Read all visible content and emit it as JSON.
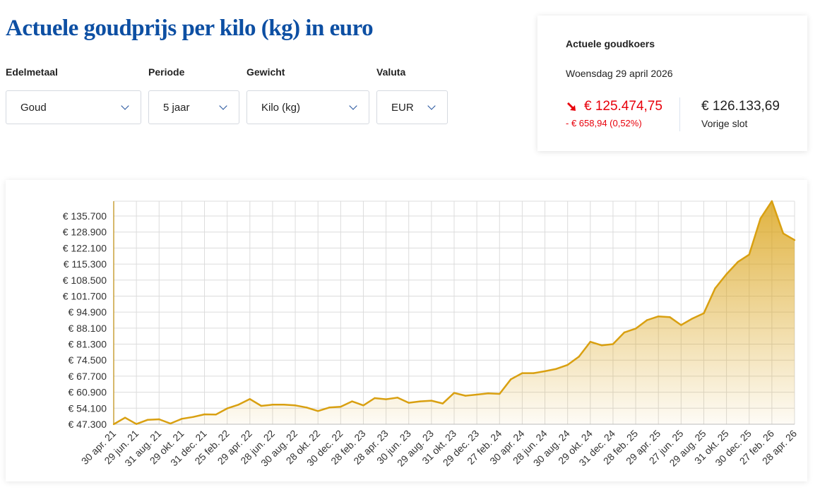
{
  "title": "Actuele goudprijs per kilo (kg) in euro",
  "filters": [
    {
      "label": "Edelmetaal",
      "value": "Goud"
    },
    {
      "label": "Periode",
      "value": "5 jaar"
    },
    {
      "label": "Gewicht",
      "value": "Kilo (kg)"
    },
    {
      "label": "Valuta",
      "value": "EUR"
    }
  ],
  "rate_card": {
    "heading": "Actuele goudkoers",
    "date": "Woensdag 29 april 2026",
    "current": "€ 125.474,75",
    "change": "- € 658,94 (0,52%)",
    "previous": "€ 126.133,69",
    "previous_label": "Vorige slot",
    "trend_icon": "arrow-down-right",
    "down_color": "#e8000b"
  },
  "chart_data": {
    "type": "area",
    "title": "",
    "xlabel": "",
    "ylabel": "",
    "color": "#d9a011",
    "ylim": [
      47300,
      142000
    ],
    "yticks": [
      47300,
      54100,
      60900,
      67700,
      74500,
      81300,
      88100,
      94900,
      101700,
      108500,
      115300,
      122100,
      128900,
      135700
    ],
    "ytick_labels": [
      "€ 47.300",
      "€ 54.100",
      "€ 60.900",
      "€ 67.700",
      "€ 74.500",
      "€ 81.300",
      "€ 88.100",
      "€ 94.900",
      "€ 101.700",
      "€ 108.500",
      "€ 115.300",
      "€ 122.100",
      "€ 128.900",
      "€ 135.700"
    ],
    "xtick_labels": [
      "30 apr. 21",
      "29 jun. 21",
      "31 aug. 21",
      "29 okt. 21",
      "31 dec. 21",
      "25 feb. 22",
      "29 apr. 22",
      "28 jun. 22",
      "30 aug. 22",
      "28 okt. 22",
      "30 dec. 22",
      "28 feb. 23",
      "28 apr. 23",
      "30 jun. 23",
      "29 aug. 23",
      "31 okt. 23",
      "29 dec. 23",
      "27 feb. 24",
      "30 apr. 24",
      "28 jun. 24",
      "30 aug. 24",
      "29 okt. 24",
      "31 dec. 24",
      "28 feb. 25",
      "29 apr. 25",
      "27 jun. 25",
      "29 aug. 25",
      "31 okt. 25",
      "30 dec. 25",
      "27 feb. 26",
      "28 apr. 26"
    ],
    "values": [
      47300,
      50100,
      47400,
      49200,
      49400,
      47600,
      49600,
      50400,
      51500,
      51400,
      54000,
      55600,
      58000,
      55100,
      55600,
      55600,
      55300,
      54400,
      52900,
      54400,
      54700,
      57000,
      55300,
      58400,
      57900,
      58600,
      56400,
      57000,
      57300,
      56100,
      60600,
      59400,
      59900,
      60400,
      60200,
      66400,
      69000,
      69000,
      69800,
      70800,
      72500,
      76000,
      82300,
      80800,
      81300,
      86300,
      87900,
      91500,
      93100,
      92800,
      89400,
      92200,
      94400,
      105000,
      111000,
      116200,
      119300,
      134700,
      142000,
      128300,
      125475
    ]
  }
}
